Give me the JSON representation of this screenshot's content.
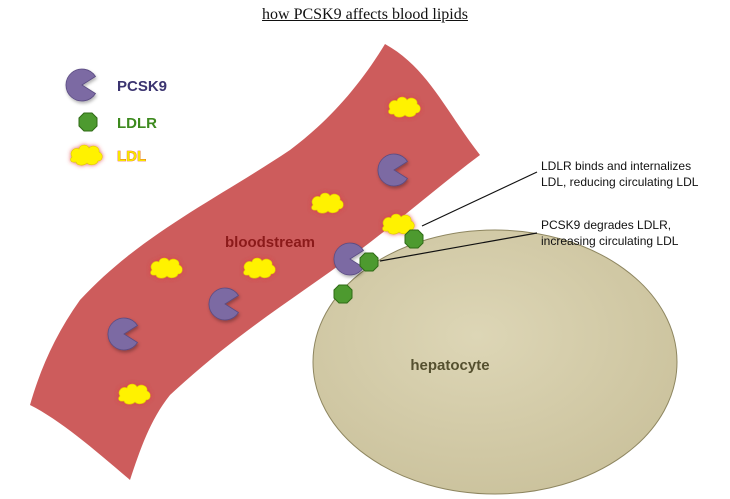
{
  "title": "how PCSK9 affects blood lipids",
  "legend": {
    "pcsk9": {
      "label": "PCSK9",
      "color": "#3b3470"
    },
    "ldlr": {
      "label": "LDLR",
      "color": "#3d8a1e"
    },
    "ldl": {
      "label": "LDL",
      "color": "#f7e600"
    }
  },
  "regions": {
    "bloodstream": {
      "label": "bloodstream",
      "color": "#cd5c5c",
      "text_color": "#8b1a1a"
    },
    "hepatocyte": {
      "label": "hepatocyte",
      "color": "#d2caa5",
      "text_color": "#55502f"
    }
  },
  "notes": {
    "internalize": {
      "line1": "LDLR binds and internalizes",
      "line2": "LDL, reducing circulating LDL"
    },
    "degrade": {
      "line1": "PCSK9 degrades LDLR,",
      "line2": "increasing circulating LDL"
    }
  },
  "colors": {
    "pcsk9_fill": "#7b6aa3",
    "ldlr_fill": "#4d9a2f",
    "ldl_fill": "#fff200",
    "ldl_glow": "#e23b3b"
  }
}
